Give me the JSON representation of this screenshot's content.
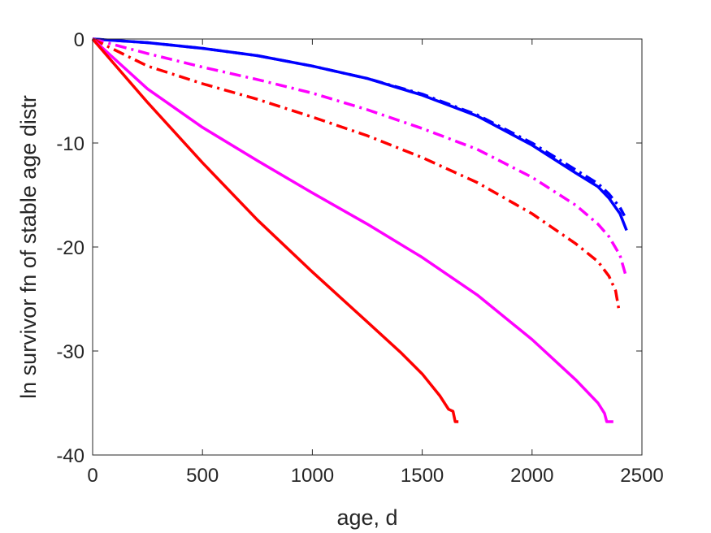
{
  "chart_data": {
    "type": "line",
    "title": "",
    "xlabel": "age, d",
    "ylabel": "ln survivor fn of stable age distr",
    "xlim": [
      0,
      2500
    ],
    "ylim": [
      -40,
      0
    ],
    "xticks": [
      0,
      500,
      1000,
      1500,
      2000,
      2500
    ],
    "yticks": [
      0,
      -10,
      -20,
      -30,
      -40
    ],
    "grid": false,
    "legend": "none",
    "series": [
      {
        "color": "#0000ff",
        "style": "solid",
        "x": [
          0,
          250,
          500,
          750,
          1000,
          1250,
          1500,
          1750,
          2000,
          2200,
          2300,
          2350,
          2400,
          2430
        ],
        "y": [
          0,
          -0.35,
          -0.9,
          -1.6,
          -2.6,
          -3.8,
          -5.4,
          -7.4,
          -10.2,
          -12.9,
          -14.2,
          -15.3,
          -16.8,
          -18.4
        ]
      },
      {
        "color": "#0000ff",
        "style": "dashdot",
        "x": [
          0,
          250,
          500,
          750,
          1000,
          1250,
          1500,
          1750,
          2000,
          2200,
          2300,
          2350,
          2400,
          2420
        ],
        "y": [
          0,
          -0.35,
          -0.9,
          -1.6,
          -2.6,
          -3.8,
          -5.3,
          -7.3,
          -10.0,
          -12.6,
          -13.9,
          -14.9,
          -16.2,
          -17.0
        ]
      },
      {
        "color": "#ff00ff",
        "style": "dashdot",
        "x": [
          0,
          250,
          500,
          750,
          1000,
          1250,
          1500,
          1750,
          2000,
          2200,
          2300,
          2350,
          2400,
          2430
        ],
        "y": [
          0,
          -1.4,
          -2.7,
          -3.9,
          -5.2,
          -6.8,
          -8.6,
          -10.6,
          -13.3,
          -16.0,
          -17.8,
          -19.0,
          -20.8,
          -23.0
        ]
      },
      {
        "color": "#ff0000",
        "style": "dashdot",
        "x": [
          0,
          250,
          500,
          750,
          1000,
          1250,
          1500,
          1750,
          2000,
          2200,
          2300,
          2350,
          2380,
          2395
        ],
        "y": [
          0,
          -2.6,
          -4.3,
          -5.8,
          -7.5,
          -9.3,
          -11.4,
          -13.8,
          -16.8,
          -19.7,
          -21.4,
          -22.8,
          -24.2,
          -26.0
        ]
      },
      {
        "color": "#ff00ff",
        "style": "solid",
        "x": [
          0,
          250,
          500,
          750,
          1000,
          1250,
          1500,
          1750,
          2000,
          2200,
          2300,
          2330,
          2340,
          2370
        ],
        "y": [
          0,
          -4.8,
          -8.5,
          -11.7,
          -14.8,
          -17.8,
          -21.0,
          -24.6,
          -28.9,
          -32.8,
          -35.0,
          -36.0,
          -36.8,
          -36.8
        ]
      },
      {
        "color": "#ff0000",
        "style": "solid",
        "x": [
          0,
          250,
          500,
          750,
          1000,
          1250,
          1400,
          1500,
          1580,
          1620,
          1640,
          1650,
          1665
        ],
        "y": [
          0,
          -6.1,
          -11.9,
          -17.4,
          -22.4,
          -27.2,
          -30.1,
          -32.2,
          -34.3,
          -35.6,
          -35.8,
          -36.8,
          -36.8
        ]
      }
    ]
  }
}
